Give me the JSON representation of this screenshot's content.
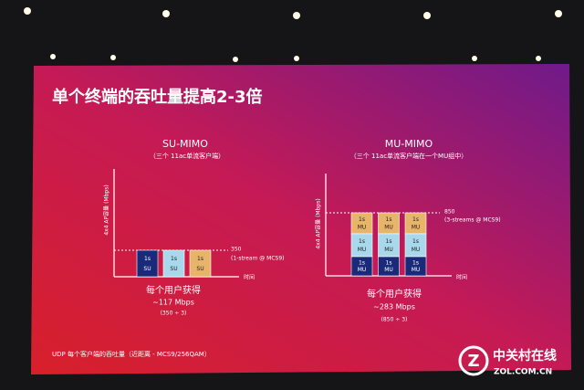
{
  "title": "单个终端的吞吐量提高2-3倍",
  "su_mimo": {
    "title": "SU-MIMO",
    "subtitle": "（三个 11ac单流客户端）",
    "y_axis_label": "4x4 AP容量 (Mbps)",
    "x_axis_label": "时间",
    "line_label": "350",
    "line_note": "(1-stream @ MCS9)",
    "blocks": [
      [
        "1s",
        "SU"
      ],
      [
        "1s",
        "SU"
      ],
      [
        "1s",
        "SU"
      ]
    ],
    "result": [
      "每个用户获得",
      "~117 Mbps",
      "(350 ÷ 3)"
    ]
  },
  "mu_mimo": {
    "title": "MU-MIMO",
    "subtitle": "（三个 11ac单流客户端在一个MU组中）",
    "y_axis_label": "4x4 AP容量 (Mbps)",
    "x_axis_label": "时间",
    "line_label": "850",
    "line_note": "(3-streams @ MCS9)",
    "stacks": [
      [
        [
          "1s",
          "MU"
        ],
        [
          "1s",
          "MU"
        ],
        [
          "1s",
          "MU"
        ]
      ],
      [
        [
          "1s",
          "MU"
        ],
        [
          "1s",
          "MU"
        ],
        [
          "1s",
          "MU"
        ]
      ],
      [
        [
          "1s",
          "MU"
        ],
        [
          "1s",
          "MU"
        ],
        [
          "1s",
          "MU"
        ]
      ]
    ],
    "result": [
      "每个用户获得",
      "~283 Mbps",
      "(850 ÷ 3)"
    ]
  },
  "footer": "UDP 每个客户端的吞吐量（近距离 - MCS9/256QAM）",
  "watermark": {
    "name": "中关村在线",
    "url": "ZOL.COM.CN"
  }
}
